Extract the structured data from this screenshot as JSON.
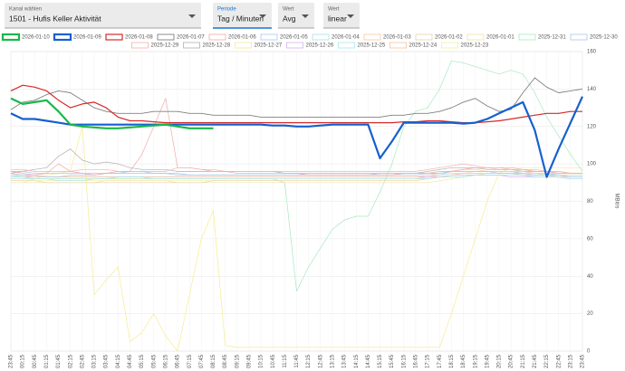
{
  "controls": [
    {
      "label": "Kanal wählen",
      "value": "1501 - Hufis Keller Aktivität"
    },
    {
      "label": "Periode",
      "value": "Tag / Minuten"
    },
    {
      "label": "Wert",
      "value": "Avg"
    },
    {
      "label": "Wert",
      "value": "linear"
    }
  ],
  "chart_data": {
    "type": "line",
    "y_label": "MBit/s",
    "axis_side": "right",
    "grid": true,
    "categories": [
      "23:45",
      "00:15",
      "00:45",
      "01:15",
      "01:45",
      "02:15",
      "02:45",
      "03:15",
      "03:45",
      "04:15",
      "04:45",
      "05:15",
      "05:45",
      "06:15",
      "06:45",
      "07:15",
      "07:45",
      "08:15",
      "08:45",
      "09:15",
      "09:45",
      "10:15",
      "10:45",
      "11:15",
      "11:45",
      "12:15",
      "12:45",
      "13:15",
      "13:45",
      "14:15",
      "14:45",
      "15:15",
      "15:45",
      "16:15",
      "16:45",
      "17:15",
      "17:45",
      "18:15",
      "18:45",
      "19:15",
      "19:45",
      "20:15",
      "20:45",
      "21:15",
      "21:45",
      "22:15",
      "22:45",
      "23:15",
      "23:45"
    ],
    "ylim": [
      0,
      160
    ],
    "yticks": [
      0,
      20,
      40,
      60,
      80,
      100,
      120,
      140,
      160
    ],
    "series": [
      {
        "name": "2026-01-10",
        "color": "#19b84a",
        "line_width": 2.2,
        "values": [
          135,
          132,
          133,
          134,
          128,
          121,
          120,
          119.5,
          119,
          119,
          119.5,
          120,
          120.5,
          121,
          120,
          119,
          119,
          119,
          null,
          null,
          null,
          null,
          null,
          null,
          null,
          null,
          null,
          null,
          null,
          null,
          null,
          null,
          null,
          null,
          null,
          null,
          null,
          null,
          null,
          null,
          null,
          null,
          null,
          null,
          null,
          null,
          null,
          null,
          null
        ]
      },
      {
        "name": "2026-01-09",
        "color": "#1560d0",
        "line_width": 2.2,
        "values": [
          127,
          124,
          124,
          123,
          122,
          121,
          121,
          121,
          121,
          121,
          121,
          121,
          121,
          121,
          121,
          121,
          121,
          121,
          121,
          121,
          121,
          121,
          120.5,
          120.5,
          120,
          120,
          120.5,
          121,
          121,
          121,
          121,
          103,
          112,
          122,
          122,
          122,
          122,
          122,
          121.5,
          122,
          124,
          127,
          130,
          133,
          118,
          93,
          108,
          122,
          136
        ]
      },
      {
        "name": "2026-01-08",
        "color": "#d42a2a",
        "line_width": 1.2,
        "values": [
          139,
          142,
          141,
          139,
          134,
          130,
          132,
          133,
          130,
          125,
          123,
          123,
          122.5,
          122,
          122,
          122,
          122,
          122,
          122,
          122,
          122,
          122,
          122,
          122,
          122,
          122,
          122,
          122,
          122,
          122,
          122,
          122,
          122,
          122.5,
          122.5,
          123,
          123,
          122.5,
          122,
          122,
          122.5,
          123,
          124,
          125,
          126,
          127,
          127,
          128,
          128
        ]
      },
      {
        "name": "2026-01-07",
        "color": "#808080",
        "line_width": 0.9,
        "values": [
          129,
          133,
          134,
          137,
          139,
          138,
          134,
          130,
          128,
          127,
          127,
          127,
          128,
          128,
          128,
          127,
          127,
          126,
          126,
          126,
          126,
          125,
          125,
          125,
          125,
          125,
          125,
          125,
          125,
          125,
          125,
          125,
          126,
          126,
          127,
          127,
          128,
          130,
          133,
          135,
          131,
          128,
          129,
          138,
          146,
          141,
          138,
          139,
          140
        ]
      },
      {
        "name": "2026-01-06",
        "color": "#f4a8a8",
        "line_width": 0.7,
        "values": [
          96,
          95,
          94,
          95,
          100,
          96,
          95,
          94,
          95,
          96,
          96,
          105,
          120,
          135,
          98,
          98,
          97,
          96,
          96,
          95,
          95,
          95,
          95,
          95,
          95,
          94,
          94,
          94,
          94,
          94,
          94,
          94,
          94,
          95,
          95,
          95,
          96,
          96,
          97,
          98,
          98,
          98,
          98,
          97,
          96,
          96,
          95,
          95,
          95
        ]
      },
      {
        "name": "2026-01-05",
        "color": "#a8c8f0",
        "line_width": 0.7,
        "values": [
          95,
          94,
          94,
          93,
          93,
          94,
          94,
          94,
          95,
          95,
          96,
          96,
          95,
          95,
          95,
          94,
          94,
          94,
          94,
          94,
          94,
          94,
          94,
          94,
          94,
          94,
          94,
          94,
          94,
          94,
          94,
          95,
          95,
          95,
          95,
          95,
          95,
          96,
          96,
          96,
          96,
          95,
          95,
          95,
          94,
          94,
          94,
          93,
          93
        ]
      },
      {
        "name": "2026-01-04",
        "color": "#a8e0e8",
        "line_width": 0.7,
        "values": [
          92,
          92,
          92,
          92,
          91,
          91,
          91,
          92,
          92,
          93,
          93,
          93,
          92,
          92,
          92,
          92,
          92,
          92,
          92,
          92,
          92,
          92,
          92,
          92,
          92,
          92,
          92,
          92,
          92,
          92,
          92,
          92,
          92,
          92,
          92,
          92,
          93,
          93,
          93,
          94,
          94,
          94,
          94,
          94,
          93,
          93,
          93,
          92,
          92
        ]
      },
      {
        "name": "2026-01-03",
        "color": "#f8c8a0",
        "line_width": 0.7,
        "values": [
          94,
          94,
          93,
          93,
          93,
          93,
          93,
          93,
          93,
          93,
          93,
          93,
          93,
          93,
          93,
          93,
          93,
          93,
          93,
          93,
          93,
          93,
          93,
          93,
          93,
          93,
          93,
          93,
          93,
          93,
          93,
          93,
          93,
          93,
          93,
          94,
          95,
          96,
          97,
          97,
          96,
          96,
          96,
          96,
          95,
          95,
          95,
          95,
          95
        ]
      },
      {
        "name": "2026-01-02",
        "color": "#e8d0a8",
        "line_width": 0.7,
        "values": [
          91,
          91,
          91,
          90,
          90,
          90,
          90,
          90,
          90,
          90,
          90,
          90,
          90,
          90,
          90,
          90,
          90,
          91,
          91,
          91,
          91,
          91,
          91,
          91,
          91,
          91,
          91,
          91,
          91,
          91,
          91,
          91,
          91,
          91,
          91,
          92,
          93,
          94,
          95,
          95,
          95,
          95,
          95,
          94,
          94,
          94,
          93,
          93,
          93
        ]
      },
      {
        "name": "2026-01-01",
        "color": "#f0e4a0",
        "line_width": 0.7,
        "values": [
          90,
          90,
          90,
          90,
          90,
          90,
          90,
          90,
          91,
          91,
          91,
          91,
          91,
          91,
          90,
          90,
          90,
          90,
          90,
          90,
          90,
          90,
          90,
          90,
          90,
          90,
          90,
          90,
          90,
          90,
          90,
          90,
          90,
          90,
          90,
          90,
          91,
          92,
          93,
          94,
          95,
          95,
          95,
          95,
          95,
          94,
          94,
          94,
          94
        ]
      },
      {
        "name": "2025-12-31",
        "color": "#a8e8c0",
        "line_width": 0.7,
        "values": [
          93,
          93,
          92,
          92,
          92,
          92,
          92,
          92,
          92,
          92,
          92,
          92,
          92,
          92,
          92,
          92,
          92,
          92,
          92,
          92,
          92,
          92,
          92,
          90,
          32,
          45,
          55,
          65,
          70,
          72,
          72,
          85,
          100,
          120,
          128,
          130,
          140,
          155,
          154,
          152,
          150,
          148,
          150,
          148,
          138,
          125,
          115,
          105,
          96
        ]
      },
      {
        "name": "2025-12-30",
        "color": "#a8c8e8",
        "line_width": 0.7,
        "values": [
          96,
          96,
          95,
          95,
          95,
          95,
          95,
          95,
          95,
          95,
          95,
          95,
          95,
          95,
          94,
          94,
          94,
          94,
          94,
          94,
          94,
          94,
          94,
          94,
          94,
          94,
          94,
          94,
          94,
          94,
          94,
          94,
          94,
          94,
          94,
          95,
          95,
          96,
          96,
          96,
          96,
          96,
          96,
          95,
          95,
          95,
          94,
          94,
          94
        ]
      },
      {
        "name": "2025-12-29",
        "color": "#f4b0b0",
        "line_width": 0.7,
        "values": [
          97,
          97,
          96,
          96,
          96,
          96,
          97,
          97,
          97,
          96,
          96,
          96,
          96,
          96,
          98,
          98,
          97,
          97,
          96,
          96,
          96,
          96,
          96,
          96,
          96,
          96,
          96,
          96,
          96,
          96,
          96,
          96,
          96,
          96,
          96,
          97,
          98,
          99,
          100,
          99,
          98,
          98,
          97,
          97,
          97,
          96,
          96,
          95,
          95
        ]
      },
      {
        "name": "2025-12-28",
        "color": "#b0b0b0",
        "line_width": 0.7,
        "values": [
          95,
          96,
          97,
          98,
          104,
          108,
          102,
          100,
          101,
          100,
          98,
          97,
          97,
          97,
          96,
          96,
          96,
          96,
          96,
          96,
          96,
          96,
          96,
          95,
          95,
          95,
          95,
          95,
          95,
          95,
          95,
          95,
          95,
          95,
          95,
          96,
          97,
          98,
          98,
          98,
          97,
          97,
          97,
          96,
          96,
          96,
          95,
          95,
          95
        ]
      },
      {
        "name": "2025-12-27",
        "color": "#f6ec90",
        "line_width": 0.7,
        "values": [
          90,
          90,
          92,
          94,
          95,
          96,
          120,
          30,
          38,
          45,
          5,
          10,
          20,
          8,
          0,
          30,
          60,
          75,
          3,
          2,
          2,
          2,
          2,
          2,
          2,
          2,
          2,
          2,
          2,
          2,
          2,
          2,
          2,
          2,
          2,
          2,
          2,
          20,
          40,
          60,
          80,
          95,
          98,
          98,
          98,
          98,
          98,
          98,
          98
        ]
      },
      {
        "name": "2025-12-26",
        "color": "#d8b0f0",
        "line_width": 0.7,
        "values": [
          93,
          93,
          93,
          93,
          93,
          93,
          93,
          93,
          93,
          93,
          93,
          93,
          93,
          93,
          93,
          93,
          93,
          93,
          93,
          93,
          93,
          93,
          93,
          93,
          93,
          93,
          93,
          93,
          93,
          93,
          93,
          93,
          93,
          93,
          93,
          93,
          93,
          94,
          94,
          94,
          94,
          94,
          93,
          93,
          93,
          93,
          93,
          92,
          92
        ]
      },
      {
        "name": "2025-12-25",
        "color": "#a8e8f0",
        "line_width": 0.7,
        "values": [
          94,
          93,
          93,
          93,
          93,
          93,
          93,
          93,
          93,
          93,
          93,
          93,
          93,
          93,
          93,
          93,
          93,
          93,
          93,
          93,
          93,
          93,
          93,
          93,
          93,
          93,
          93,
          93,
          93,
          93,
          93,
          93,
          93,
          93,
          93,
          94,
          94,
          95,
          95,
          95,
          95,
          95,
          95,
          94,
          94,
          94,
          94,
          93,
          93
        ]
      },
      {
        "name": "2025-12-24",
        "color": "#f8c0a0",
        "line_width": 0.7,
        "values": [
          92,
          92,
          92,
          92,
          92,
          92,
          92,
          92,
          92,
          92,
          92,
          92,
          92,
          92,
          92,
          92,
          92,
          92,
          92,
          92,
          92,
          92,
          92,
          92,
          92,
          92,
          92,
          92,
          92,
          92,
          92,
          92,
          92,
          92,
          92,
          93,
          94,
          96,
          97,
          98,
          98,
          97,
          97,
          97,
          96,
          96,
          96,
          95,
          95
        ]
      },
      {
        "name": "2025-12-23",
        "color": "#f0f0a0",
        "line_width": 0.7,
        "values": [
          91,
          91,
          91,
          91,
          91,
          91,
          91,
          91,
          91,
          91,
          91,
          91,
          91,
          91,
          91,
          91,
          91,
          91,
          91,
          91,
          91,
          91,
          91,
          91,
          91,
          91,
          91,
          91,
          91,
          91,
          91,
          91,
          91,
          91,
          91,
          92,
          93,
          94,
          95,
          96,
          96,
          96,
          96,
          95,
          95,
          95,
          94,
          94,
          94
        ]
      }
    ]
  }
}
